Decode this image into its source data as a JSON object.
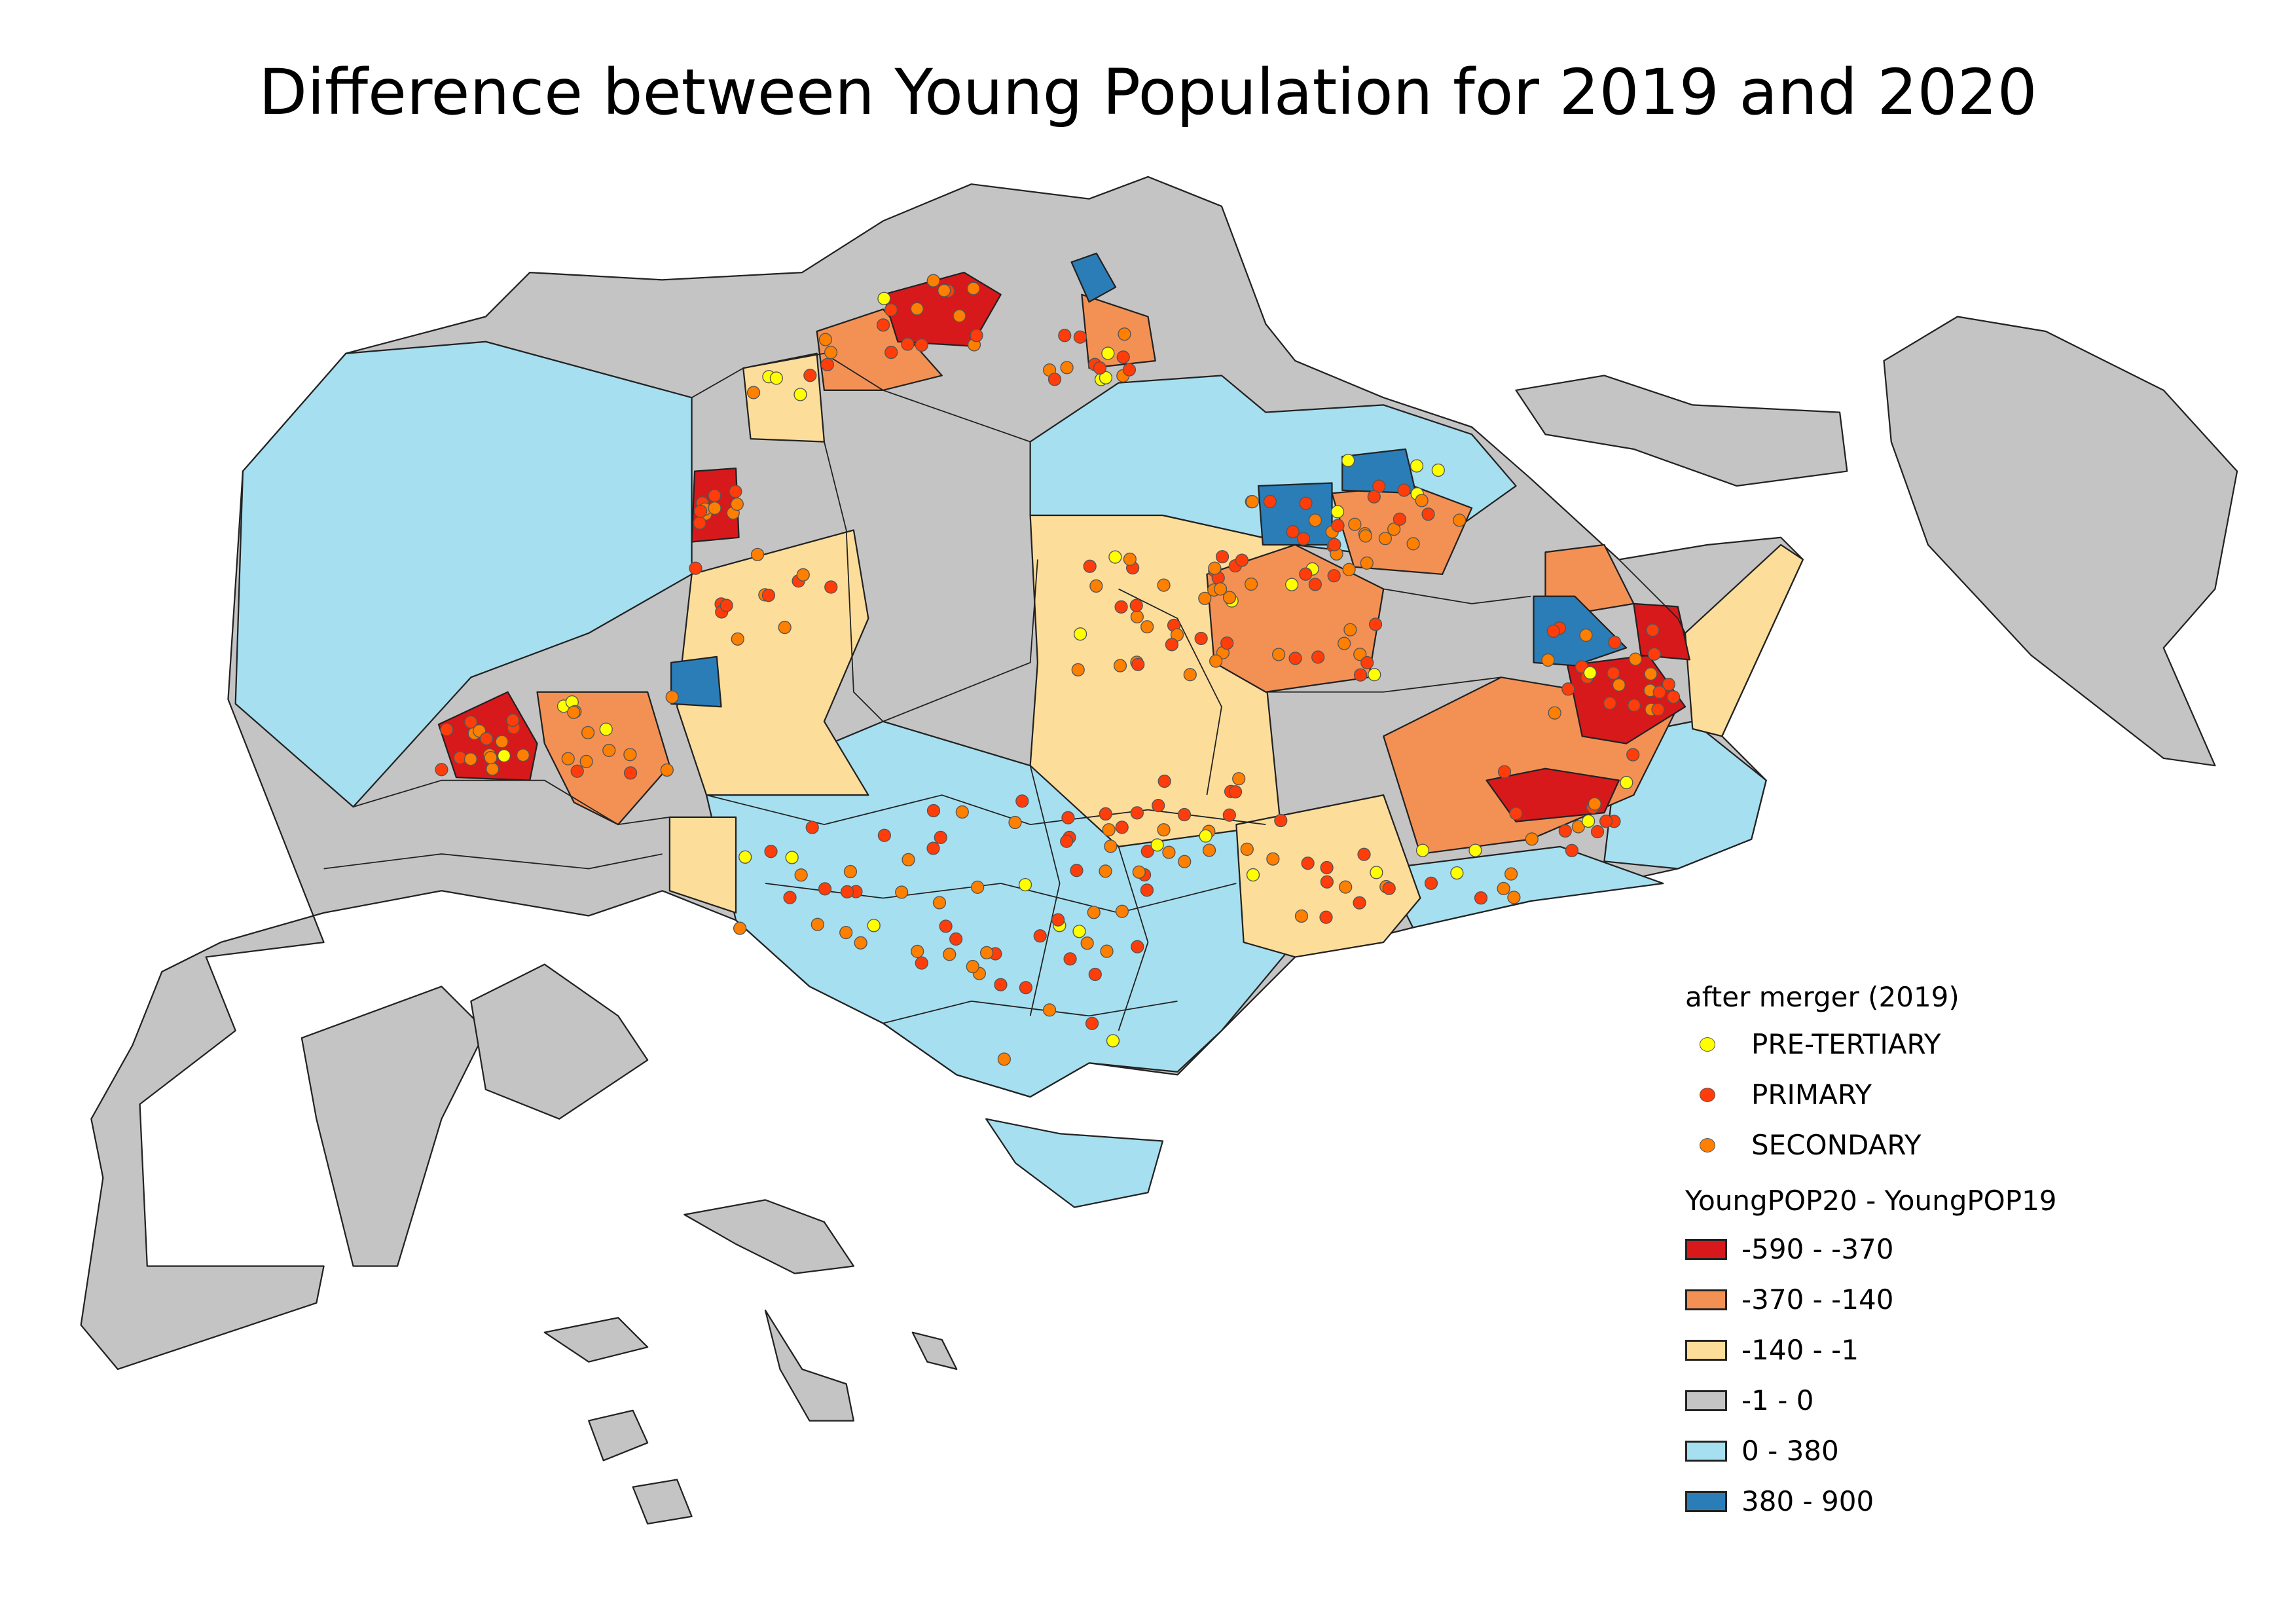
{
  "title": "Difference between Young Population for 2019 and 2020",
  "legend": {
    "points_title": "after merger (2019)",
    "points": [
      {
        "label": "PRE-TERTIARY",
        "color": "#ffff00"
      },
      {
        "label": "PRIMARY",
        "color": "#ff3d0a"
      },
      {
        "label": "SECONDARY",
        "color": "#ff7f00"
      }
    ],
    "classes_title": "YoungPOP20 - YoungPOP19",
    "classes": [
      {
        "label": "-590 - -370",
        "color": "#d7191c"
      },
      {
        "label": "-370 - -140",
        "color": "#f39155"
      },
      {
        "label": "-140 - -1",
        "color": "#fddd9a"
      },
      {
        "label": "-1 - 0",
        "color": "#c4c4c4"
      },
      {
        "label": "0 - 380",
        "color": "#a6dff0"
      },
      {
        "label": "380 - 900",
        "color": "#2b7db8"
      }
    ]
  }
}
